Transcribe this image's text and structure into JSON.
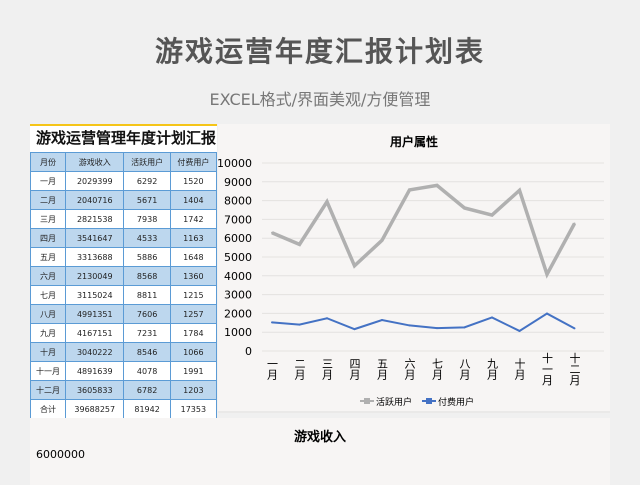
{
  "header": {
    "title": "游戏运营年度汇报计划表",
    "subtitle": "EXCEL格式/界面美观/方便管理"
  },
  "table": {
    "title": "游戏运营管理年度计划汇报",
    "columns": [
      "月份",
      "游戏收入",
      "活跃用户",
      "付费用户"
    ],
    "rows": [
      [
        "一月",
        "2029399",
        "6292",
        "1520"
      ],
      [
        "二月",
        "2040716",
        "5671",
        "1404"
      ],
      [
        "三月",
        "2821538",
        "7938",
        "1742"
      ],
      [
        "四月",
        "3541647",
        "4533",
        "1163"
      ],
      [
        "五月",
        "3313688",
        "5886",
        "1648"
      ],
      [
        "六月",
        "2130049",
        "8568",
        "1360"
      ],
      [
        "七月",
        "3115024",
        "8811",
        "1215"
      ],
      [
        "八月",
        "4991351",
        "7606",
        "1257"
      ],
      [
        "九月",
        "4167151",
        "7231",
        "1784"
      ],
      [
        "十月",
        "3040222",
        "8546",
        "1066"
      ],
      [
        "十一月",
        "4891639",
        "4078",
        "1991"
      ],
      [
        "十二月",
        "3605833",
        "6782",
        "1203"
      ],
      [
        "合计",
        "39688257",
        "81942",
        "17353"
      ]
    ]
  },
  "chart_data": [
    {
      "type": "line",
      "title": "用户属性",
      "categories": [
        "一月",
        "二月",
        "三月",
        "四月",
        "五月",
        "六月",
        "七月",
        "八月",
        "九月",
        "十月",
        "十一月",
        "十二月"
      ],
      "series": [
        {
          "name": "活跃用户",
          "values": [
            6292,
            5671,
            7938,
            4533,
            5886,
            8568,
            8811,
            7606,
            7231,
            8546,
            4078,
            6782
          ],
          "color": "#b0b0b0"
        },
        {
          "name": "付费用户",
          "values": [
            1520,
            1404,
            1742,
            1163,
            1648,
            1360,
            1215,
            1257,
            1784,
            1066,
            1991,
            1203
          ],
          "color": "#4472c4"
        }
      ],
      "ylim": [
        0,
        10000
      ],
      "yticks": [
        0,
        1000,
        2000,
        3000,
        4000,
        5000,
        6000,
        7000,
        8000,
        9000,
        10000
      ],
      "legend": "bottom",
      "grid": true
    },
    {
      "type": "bar",
      "title": "游戏收入",
      "ytick_visible": "6000000"
    }
  ]
}
